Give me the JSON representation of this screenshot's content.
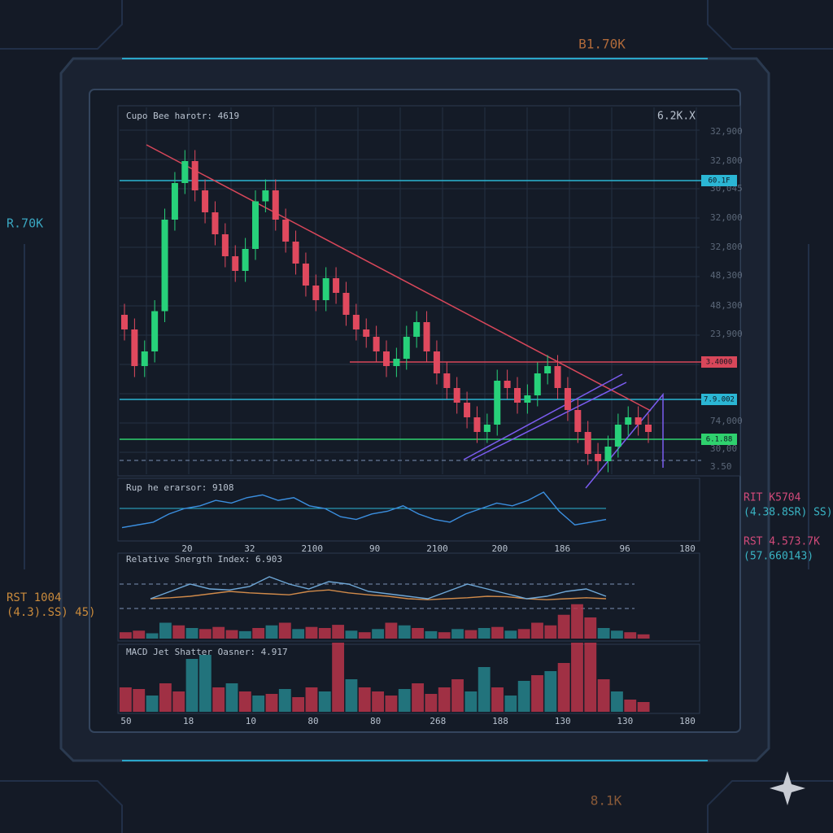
{
  "header": {
    "title": "B1.70K",
    "footer": "8.1K"
  },
  "side_labels": {
    "left_top": "R.70K",
    "left_bottom_1": "RST 1004",
    "left_bottom_2": "(4.3).SS) 45)",
    "right_1a": "RIT K5704",
    "right_1b": "(4.38.8SR) SS)",
    "right_2a": "RST 4.573.7K",
    "right_2b": "(57.660143)"
  },
  "chart_data": [
    {
      "type": "candlestick",
      "title": "Cupo Bee harotr: 4619",
      "corner_label": "6.2K.X",
      "ylim": [
        0,
        100
      ],
      "up_color": "#27d17a",
      "down_color": "#e0495e",
      "price_labels": [
        "32,900",
        "32,800",
        "30,045",
        "32,000",
        "32,800",
        "48,300",
        "48,300",
        "23,900",
        "74,000",
        "30,00",
        "3.50"
      ],
      "level_tags": [
        "60.1F",
        "3.4000",
        "7.9.002",
        "6.1.88"
      ],
      "open": [
        44,
        40,
        30,
        34,
        45,
        70,
        80,
        86,
        78,
        72,
        66,
        60,
        56,
        62,
        75,
        78,
        70,
        64,
        58,
        52,
        48,
        54,
        50,
        44,
        40,
        38,
        34,
        30,
        32,
        38,
        42,
        34,
        28,
        24,
        20,
        16,
        12,
        14,
        26,
        24,
        20,
        22,
        28,
        30,
        24,
        18,
        12,
        6,
        4,
        8,
        14,
        16,
        14
      ],
      "high": [
        47,
        43,
        37,
        48,
        73,
        83,
        89,
        89,
        81,
        75,
        69,
        63,
        65,
        78,
        81,
        81,
        73,
        67,
        61,
        55,
        57,
        57,
        53,
        47,
        43,
        41,
        37,
        35,
        41,
        45,
        45,
        37,
        31,
        27,
        23,
        19,
        17,
        29,
        29,
        27,
        25,
        31,
        33,
        33,
        27,
        21,
        15,
        9,
        11,
        17,
        19,
        19,
        17
      ],
      "low": [
        37,
        27,
        27,
        31,
        42,
        67,
        77,
        75,
        69,
        63,
        57,
        53,
        53,
        59,
        72,
        67,
        61,
        55,
        49,
        45,
        45,
        47,
        41,
        37,
        35,
        31,
        27,
        27,
        29,
        35,
        31,
        25,
        21,
        17,
        13,
        9,
        9,
        11,
        21,
        17,
        17,
        19,
        25,
        21,
        15,
        9,
        3,
        1,
        1,
        5,
        11,
        11,
        9
      ],
      "close": [
        40,
        30,
        34,
        45,
        70,
        80,
        86,
        78,
        72,
        66,
        60,
        56,
        62,
        75,
        78,
        70,
        64,
        58,
        52,
        48,
        54,
        50,
        44,
        40,
        38,
        34,
        30,
        32,
        38,
        42,
        34,
        28,
        24,
        20,
        16,
        12,
        14,
        26,
        24,
        20,
        22,
        28,
        30,
        24,
        18,
        12,
        6,
        4,
        8,
        14,
        16,
        14,
        12
      ]
    },
    {
      "type": "line",
      "title": "Rup he erarsor: 9108",
      "color": "#3b8fe0",
      "ylim": [
        0,
        100
      ],
      "values": [
        20,
        25,
        30,
        45,
        55,
        60,
        70,
        65,
        75,
        80,
        70,
        75,
        60,
        55,
        40,
        35,
        45,
        50,
        60,
        45,
        35,
        30,
        45,
        55,
        65,
        60,
        70,
        85,
        50,
        25,
        30,
        35
      ],
      "x_labels": [
        "20",
        "32",
        "2100",
        "90",
        "2100",
        "200",
        "186",
        "96",
        "180"
      ]
    },
    {
      "type": "bar",
      "title": "Relative Snergth Index: 6.903",
      "ylim": [
        0,
        100
      ],
      "values": [
        12,
        15,
        10,
        30,
        25,
        20,
        18,
        22,
        16,
        14,
        20,
        25,
        30,
        18,
        22,
        20,
        26,
        15,
        12,
        18,
        30,
        25,
        20,
        14,
        12,
        18,
        16,
        20,
        22,
        15,
        18,
        30,
        25,
        45,
        65,
        40,
        20,
        15,
        12,
        8
      ],
      "colors": [
        "#b8344a",
        "#b8344a",
        "#25828c",
        "#25828c",
        "#b8344a",
        "#25828c",
        "#b8344a",
        "#b8344a",
        "#b8344a",
        "#25828c",
        "#b8344a",
        "#25828c",
        "#b8344a",
        "#25828c",
        "#b8344a",
        "#b8344a",
        "#b8344a",
        "#25828c",
        "#b8344a",
        "#25828c",
        "#b8344a",
        "#25828c",
        "#b8344a",
        "#25828c",
        "#b8344a",
        "#25828c",
        "#b8344a",
        "#25828c",
        "#b8344a",
        "#25828c",
        "#b8344a",
        "#b8344a",
        "#b8344a",
        "#b8344a",
        "#b8344a",
        "#b8344a",
        "#25828c",
        "#25828c",
        "#b8344a",
        "#b8344a"
      ],
      "lines": [
        {
          "color": "#d08a4a",
          "values": [
            40,
            42,
            45,
            50,
            55,
            52,
            50,
            48,
            55,
            58,
            52,
            48,
            45,
            40,
            38,
            40,
            42,
            45,
            44,
            40,
            38,
            40,
            42,
            40
          ]
        },
        {
          "color": "#6fa8d8",
          "values": [
            40,
            55,
            70,
            60,
            58,
            65,
            85,
            70,
            60,
            75,
            70,
            55,
            50,
            45,
            40,
            55,
            70,
            60,
            50,
            40,
            45,
            55,
            60,
            45
          ]
        }
      ]
    },
    {
      "type": "bar",
      "title": "MACD Jet Shatter Oasner: 4.917",
      "ylim": [
        0,
        100
      ],
      "values": [
        30,
        28,
        20,
        35,
        25,
        65,
        70,
        30,
        35,
        25,
        20,
        22,
        28,
        18,
        30,
        25,
        85,
        40,
        30,
        25,
        20,
        28,
        35,
        22,
        30,
        40,
        25,
        55,
        30,
        20,
        38,
        45,
        50,
        60,
        85,
        85,
        40,
        25,
        15,
        12
      ],
      "colors": [
        "#b8344a",
        "#b8344a",
        "#25828c",
        "#b8344a",
        "#b8344a",
        "#25828c",
        "#25828c",
        "#b8344a",
        "#25828c",
        "#b8344a",
        "#25828c",
        "#b8344a",
        "#25828c",
        "#b8344a",
        "#b8344a",
        "#25828c",
        "#b8344a",
        "#25828c",
        "#b8344a",
        "#b8344a",
        "#b8344a",
        "#25828c",
        "#b8344a",
        "#b8344a",
        "#b8344a",
        "#b8344a",
        "#25828c",
        "#25828c",
        "#b8344a",
        "#25828c",
        "#25828c",
        "#b8344a",
        "#25828c",
        "#b8344a",
        "#b8344a",
        "#b8344a",
        "#b8344a",
        "#25828c",
        "#b8344a",
        "#b8344a"
      ],
      "x_labels": [
        "50",
        "18",
        "10",
        "80",
        "80",
        "268",
        "188",
        "130",
        "130",
        "180"
      ]
    }
  ]
}
